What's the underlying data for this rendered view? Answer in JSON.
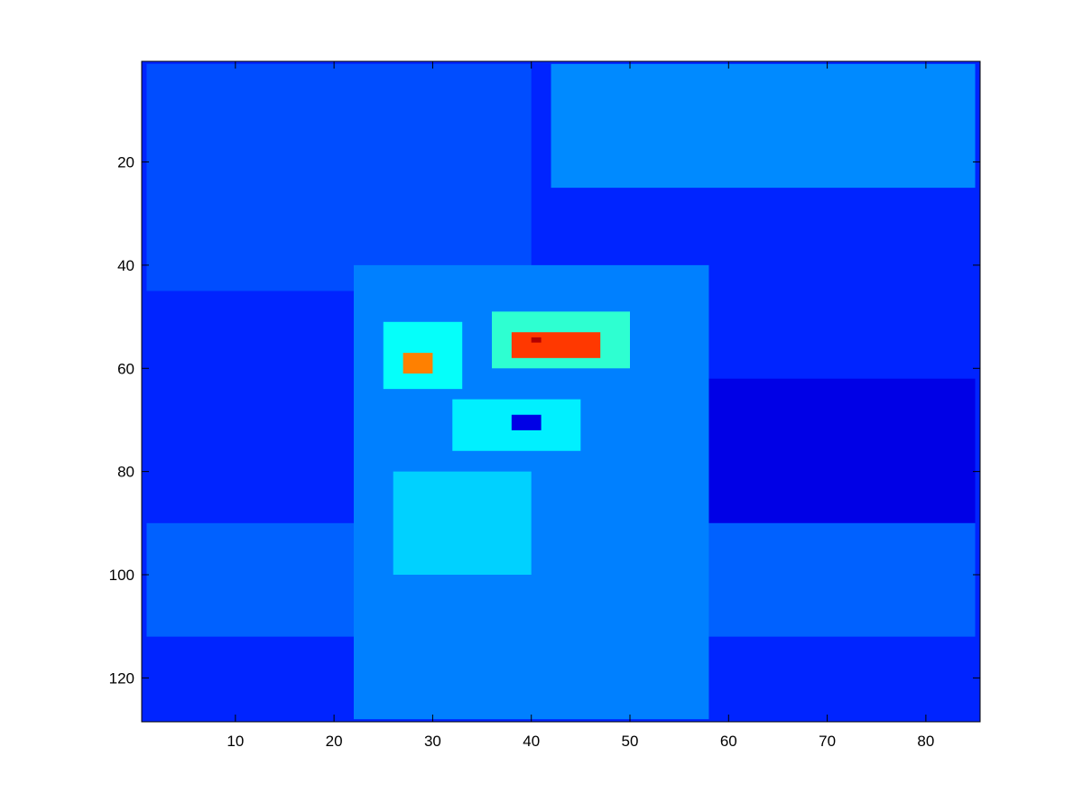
{
  "chart_data": {
    "type": "heatmap",
    "colormap": "jet",
    "x_ticks": [
      10,
      20,
      30,
      40,
      50,
      60,
      70,
      80
    ],
    "y_ticks": [
      20,
      40,
      60,
      80,
      100,
      120
    ],
    "xlim": [
      0.5,
      85.5
    ],
    "ylim": [
      0.5,
      128.5
    ],
    "y_direction": "reversed",
    "grid": false,
    "regions": [
      {
        "name": "background",
        "x": [
          0.5,
          85.5
        ],
        "y": [
          0.5,
          128.5
        ],
        "value": 0.16
      },
      {
        "name": "upper-left-band",
        "x": [
          1,
          40
        ],
        "y": [
          1,
          45
        ],
        "value": 0.2
      },
      {
        "name": "top-right-streak",
        "x": [
          42,
          85
        ],
        "y": [
          1,
          25
        ],
        "value": 0.26
      },
      {
        "name": "right-dark-area",
        "x": [
          58,
          85
        ],
        "y": [
          62,
          90
        ],
        "value": 0.1
      },
      {
        "name": "lower-band",
        "x": [
          1,
          85
        ],
        "y": [
          90,
          112
        ],
        "value": 0.22
      },
      {
        "name": "central-figure",
        "x": [
          22,
          58
        ],
        "y": [
          40,
          128
        ],
        "value": 0.25
      },
      {
        "name": "left-eye-halo",
        "x": [
          25,
          33
        ],
        "y": [
          51,
          64
        ],
        "value": 0.38
      },
      {
        "name": "right-eye-halo",
        "x": [
          36,
          50
        ],
        "y": [
          49,
          60
        ],
        "value": 0.42
      },
      {
        "name": "left-eye-hot",
        "x": [
          27,
          30
        ],
        "y": [
          57,
          61
        ],
        "value": 0.75
      },
      {
        "name": "right-eye-hot",
        "x": [
          38,
          47
        ],
        "y": [
          53,
          58
        ],
        "value": 0.82
      },
      {
        "name": "right-eye-peak",
        "x": [
          40,
          41
        ],
        "y": [
          54,
          55
        ],
        "value": 0.95
      },
      {
        "name": "mouth-ring",
        "x": [
          32,
          45
        ],
        "y": [
          66,
          76
        ],
        "value": 0.36
      },
      {
        "name": "mouth-center",
        "x": [
          38,
          41
        ],
        "y": [
          69,
          72
        ],
        "value": 0.1
      },
      {
        "name": "chin-neck",
        "x": [
          26,
          40
        ],
        "y": [
          80,
          100
        ],
        "value": 0.33
      }
    ]
  }
}
